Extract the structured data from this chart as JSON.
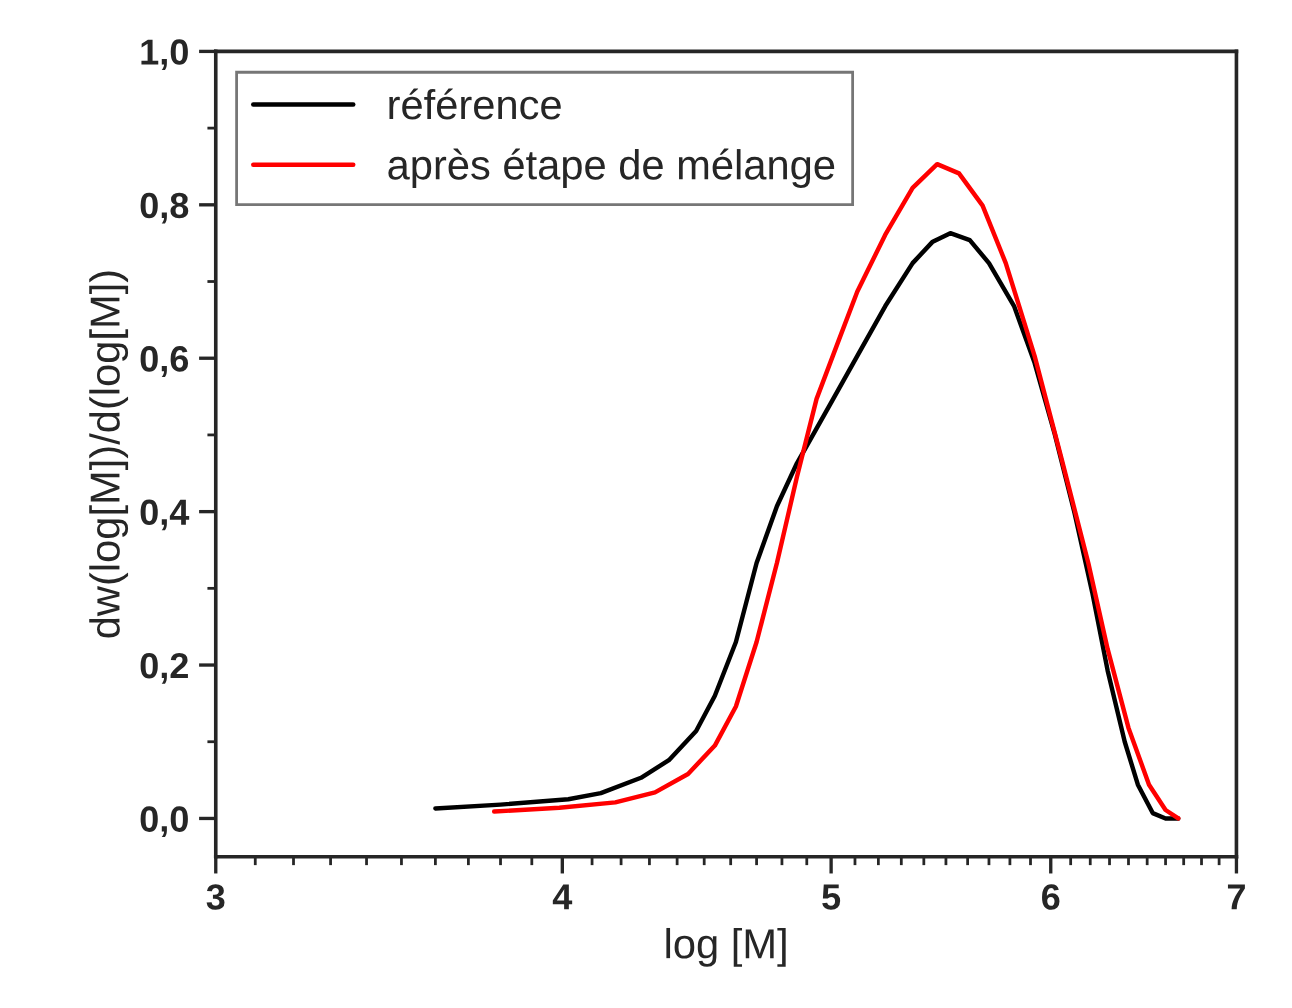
{
  "chart_data": {
    "type": "line",
    "xlabel": "log [M]",
    "ylabel": "dw(log[M])/d(log[M])",
    "log": "x",
    "xlim": [
      3,
      7
    ],
    "xticks": [
      3,
      4,
      5,
      6,
      7
    ],
    "ylim": [
      -0.05,
      1.0
    ],
    "yticks": [
      {
        "value": 0,
        "label": "0,0"
      },
      {
        "value": 0.2,
        "label": "0,2"
      },
      {
        "value": 0.4,
        "label": "0,4"
      },
      {
        "value": 0.6,
        "label": "0,6"
      },
      {
        "value": 0.8,
        "label": "0,8"
      },
      {
        "value": 1.0,
        "label": "1,0"
      }
    ],
    "grid": false,
    "legend": "top left",
    "line_style": "solid",
    "marker": "none",
    "series": [
      {
        "name": "référence",
        "color": "#000000",
        "x": [
          3.6,
          3.8,
          4.02,
          4.13,
          4.27,
          4.37,
          4.47,
          4.54,
          4.62,
          4.7,
          4.78,
          4.86,
          5.0,
          5.11,
          5.23,
          5.35,
          5.44,
          5.52,
          5.61,
          5.7,
          5.82,
          5.92,
          6.02,
          6.12,
          6.21,
          6.29,
          6.38,
          6.45,
          6.53,
          6.6,
          6.67
        ],
        "values": [
          0.013,
          0.018,
          0.025,
          0.033,
          0.053,
          0.076,
          0.114,
          0.16,
          0.23,
          0.333,
          0.407,
          0.463,
          0.542,
          0.603,
          0.668,
          0.724,
          0.752,
          0.763,
          0.754,
          0.724,
          0.668,
          0.594,
          0.501,
          0.398,
          0.295,
          0.193,
          0.1,
          0.044,
          0.007,
          0.0,
          0.0
        ]
      },
      {
        "name": "après étape de mélange",
        "color": "#ff0000",
        "x": [
          3.78,
          3.99,
          4.18,
          4.32,
          4.44,
          4.54,
          4.62,
          4.7,
          4.78,
          4.86,
          4.94,
          5.03,
          5.11,
          5.23,
          5.35,
          5.46,
          5.56,
          5.67,
          5.78,
          5.92,
          6.05,
          6.19,
          6.29,
          6.4,
          6.51,
          6.6,
          6.67
        ],
        "values": [
          0.009,
          0.014,
          0.021,
          0.034,
          0.058,
          0.095,
          0.146,
          0.23,
          0.333,
          0.445,
          0.547,
          0.622,
          0.687,
          0.761,
          0.822,
          0.853,
          0.841,
          0.799,
          0.724,
          0.603,
          0.473,
          0.333,
          0.221,
          0.118,
          0.044,
          0.011,
          0.0
        ]
      }
    ]
  }
}
